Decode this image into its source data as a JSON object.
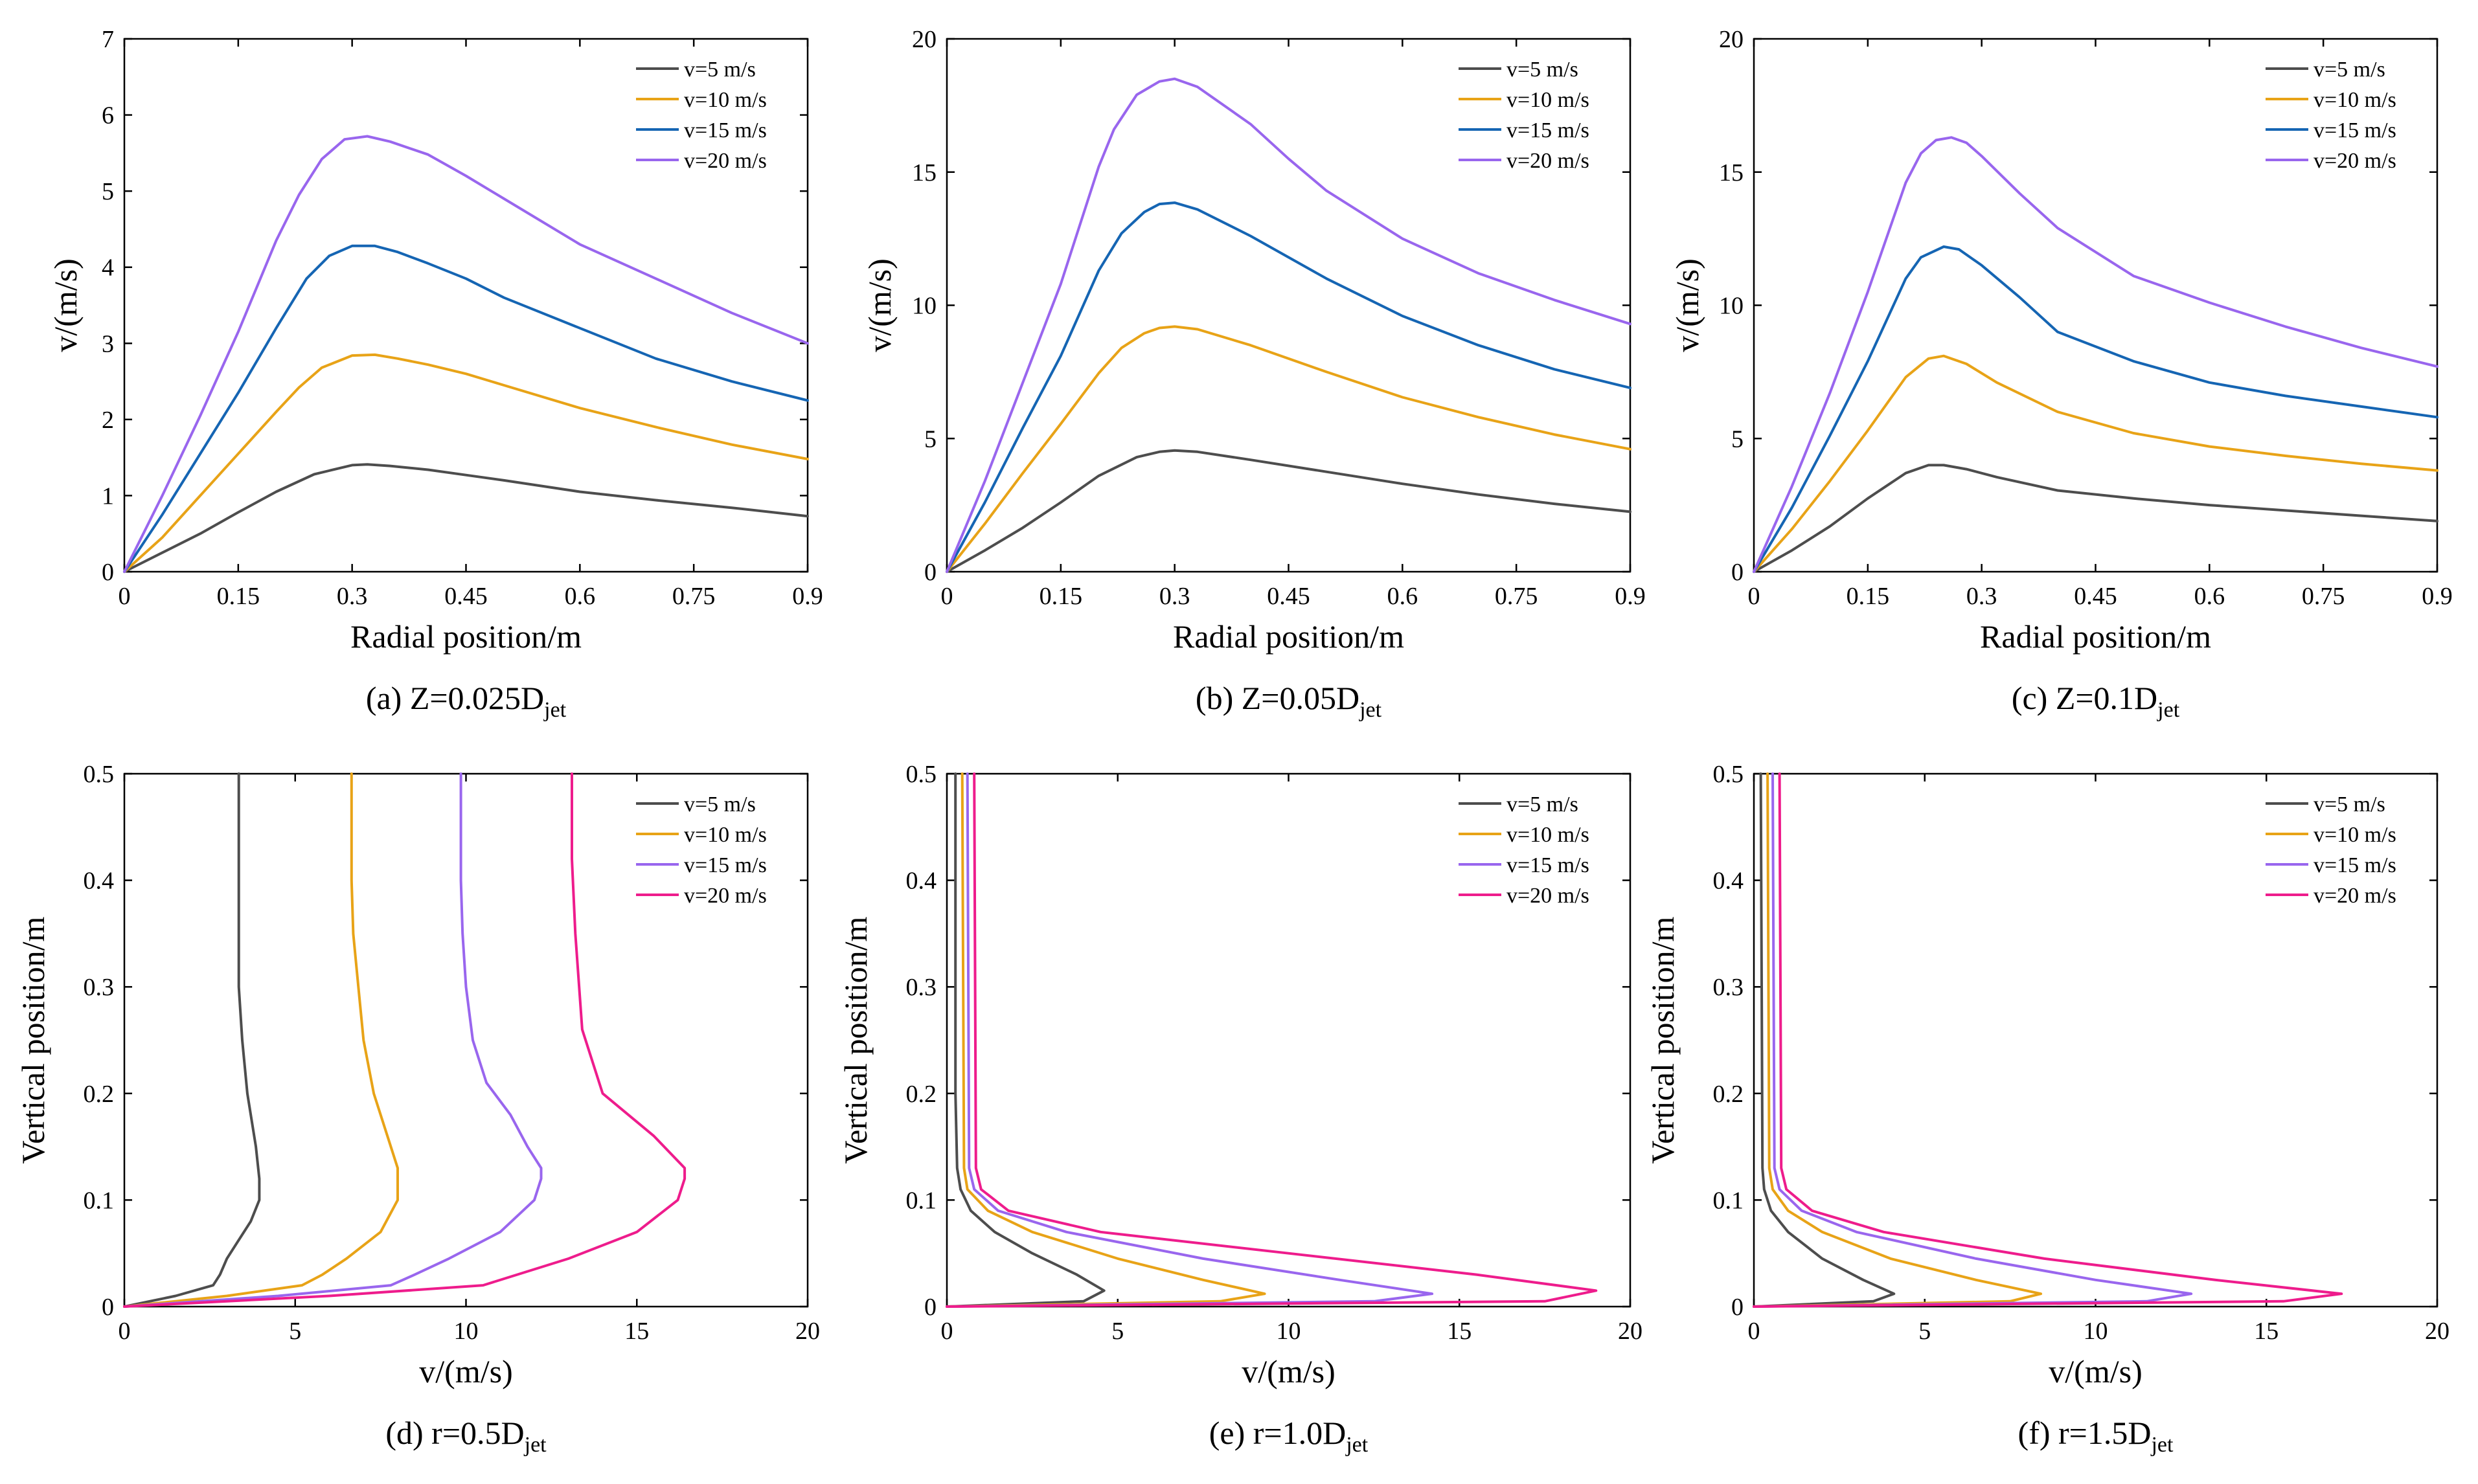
{
  "chart_data": [
    {
      "type": "line",
      "caption": {
        "prefix": "(a) Z=0.025D",
        "sub": "jet"
      },
      "xlabel": "Radial position/m",
      "ylabel": "v/(m/s)",
      "xlim": [
        0,
        0.9
      ],
      "ylim": [
        0,
        7
      ],
      "xticks": [
        0,
        0.15,
        0.3,
        0.45,
        0.6,
        0.75,
        0.9
      ],
      "xtick_labels": [
        "0",
        "0.15",
        "0.3",
        "0.45",
        "0.6",
        "0.75",
        "0.9"
      ],
      "yticks": [
        0,
        1,
        2,
        3,
        4,
        5,
        6,
        7
      ],
      "ytick_labels": [
        "0",
        "1",
        "2",
        "3",
        "4",
        "5",
        "6",
        "7"
      ],
      "legend_position": "top-right",
      "series": [
        {
          "name": "v=5 m/s",
          "color": "#4d4d4d",
          "x": [
            0,
            0.05,
            0.1,
            0.15,
            0.2,
            0.25,
            0.3,
            0.32,
            0.35,
            0.4,
            0.45,
            0.5,
            0.6,
            0.7,
            0.8,
            0.9
          ],
          "y": [
            0,
            0.25,
            0.5,
            0.78,
            1.05,
            1.28,
            1.4,
            1.41,
            1.39,
            1.34,
            1.27,
            1.2,
            1.05,
            0.94,
            0.84,
            0.73
          ]
        },
        {
          "name": "v=10 m/s",
          "color": "#e8a317",
          "x": [
            0,
            0.05,
            0.1,
            0.15,
            0.2,
            0.23,
            0.26,
            0.3,
            0.33,
            0.36,
            0.4,
            0.45,
            0.5,
            0.6,
            0.7,
            0.8,
            0.9
          ],
          "y": [
            0,
            0.45,
            1.0,
            1.55,
            2.1,
            2.42,
            2.68,
            2.84,
            2.85,
            2.8,
            2.72,
            2.6,
            2.45,
            2.15,
            1.9,
            1.67,
            1.48
          ]
        },
        {
          "name": "v=15 m/s",
          "color": "#1565b3",
          "x": [
            0,
            0.05,
            0.1,
            0.15,
            0.2,
            0.24,
            0.27,
            0.3,
            0.33,
            0.36,
            0.4,
            0.45,
            0.5,
            0.6,
            0.7,
            0.8,
            0.9
          ],
          "y": [
            0,
            0.75,
            1.55,
            2.35,
            3.2,
            3.85,
            4.15,
            4.28,
            4.28,
            4.2,
            4.05,
            3.85,
            3.6,
            3.2,
            2.8,
            2.5,
            2.25
          ]
        },
        {
          "name": "v=20 m/s",
          "color": "#9966ee",
          "x": [
            0,
            0.05,
            0.1,
            0.15,
            0.2,
            0.23,
            0.26,
            0.29,
            0.32,
            0.35,
            0.4,
            0.45,
            0.5,
            0.6,
            0.7,
            0.8,
            0.9
          ],
          "y": [
            0,
            1.0,
            2.05,
            3.15,
            4.35,
            4.95,
            5.42,
            5.68,
            5.72,
            5.65,
            5.48,
            5.2,
            4.9,
            4.3,
            3.85,
            3.4,
            3.0
          ]
        }
      ]
    },
    {
      "type": "line",
      "caption": {
        "prefix": "(b) Z=0.05D",
        "sub": "jet"
      },
      "xlabel": "Radial position/m",
      "ylabel": "v/(m/s)",
      "xlim": [
        0,
        0.9
      ],
      "ylim": [
        0,
        20
      ],
      "xticks": [
        0,
        0.15,
        0.3,
        0.45,
        0.6,
        0.75,
        0.9
      ],
      "xtick_labels": [
        "0",
        "0.15",
        "0.3",
        "0.45",
        "0.6",
        "0.75",
        "0.9"
      ],
      "yticks": [
        0,
        5,
        10,
        15,
        20
      ],
      "ytick_labels": [
        "0",
        "5",
        "10",
        "15",
        "20"
      ],
      "legend_position": "top-right",
      "series": [
        {
          "name": "v=5 m/s",
          "color": "#4d4d4d",
          "x": [
            0,
            0.05,
            0.1,
            0.15,
            0.2,
            0.25,
            0.28,
            0.3,
            0.33,
            0.4,
            0.5,
            0.6,
            0.7,
            0.8,
            0.9
          ],
          "y": [
            0,
            0.8,
            1.65,
            2.6,
            3.6,
            4.3,
            4.5,
            4.55,
            4.5,
            4.2,
            3.75,
            3.3,
            2.9,
            2.55,
            2.25
          ]
        },
        {
          "name": "v=10 m/s",
          "color": "#e8a317",
          "x": [
            0,
            0.05,
            0.1,
            0.15,
            0.2,
            0.23,
            0.26,
            0.28,
            0.3,
            0.33,
            0.4,
            0.5,
            0.6,
            0.7,
            0.8,
            0.9
          ],
          "y": [
            0,
            1.8,
            3.7,
            5.55,
            7.45,
            8.4,
            8.95,
            9.15,
            9.2,
            9.1,
            8.5,
            7.5,
            6.55,
            5.8,
            5.15,
            4.6
          ]
        },
        {
          "name": "v=15 m/s",
          "color": "#1565b3",
          "x": [
            0,
            0.05,
            0.1,
            0.15,
            0.2,
            0.23,
            0.26,
            0.28,
            0.3,
            0.33,
            0.4,
            0.5,
            0.6,
            0.7,
            0.8,
            0.9
          ],
          "y": [
            0,
            2.6,
            5.4,
            8.1,
            11.3,
            12.7,
            13.5,
            13.8,
            13.85,
            13.6,
            12.6,
            11.0,
            9.6,
            8.5,
            7.6,
            6.9
          ]
        },
        {
          "name": "v=20 m/s",
          "color": "#9966ee",
          "x": [
            0,
            0.05,
            0.1,
            0.15,
            0.2,
            0.22,
            0.25,
            0.28,
            0.3,
            0.33,
            0.4,
            0.45,
            0.5,
            0.6,
            0.7,
            0.8,
            0.9
          ],
          "y": [
            0,
            3.4,
            7.1,
            10.8,
            15.2,
            16.6,
            17.9,
            18.4,
            18.5,
            18.2,
            16.8,
            15.5,
            14.3,
            12.5,
            11.2,
            10.2,
            9.3
          ]
        }
      ]
    },
    {
      "type": "line",
      "caption": {
        "prefix": "(c) Z=0.1D",
        "sub": "jet"
      },
      "xlabel": "Radial position/m",
      "ylabel": "v/(m/s)",
      "xlim": [
        0,
        0.9
      ],
      "ylim": [
        0,
        20
      ],
      "xticks": [
        0,
        0.15,
        0.3,
        0.45,
        0.6,
        0.75,
        0.9
      ],
      "xtick_labels": [
        "0",
        "0.15",
        "0.3",
        "0.45",
        "0.6",
        "0.75",
        "0.9"
      ],
      "yticks": [
        0,
        5,
        10,
        15,
        20
      ],
      "ytick_labels": [
        "0",
        "5",
        "10",
        "15",
        "20"
      ],
      "legend_position": "top-right",
      "series": [
        {
          "name": "v=5 m/s",
          "color": "#4d4d4d",
          "x": [
            0,
            0.05,
            0.1,
            0.15,
            0.2,
            0.23,
            0.25,
            0.28,
            0.32,
            0.4,
            0.5,
            0.6,
            0.7,
            0.8,
            0.9
          ],
          "y": [
            0,
            0.8,
            1.7,
            2.75,
            3.7,
            4.0,
            4.0,
            3.85,
            3.55,
            3.05,
            2.75,
            2.5,
            2.3,
            2.1,
            1.9
          ]
        },
        {
          "name": "v=10 m/s",
          "color": "#e8a317",
          "x": [
            0,
            0.05,
            0.1,
            0.15,
            0.2,
            0.23,
            0.25,
            0.28,
            0.32,
            0.4,
            0.5,
            0.6,
            0.7,
            0.8,
            0.9
          ],
          "y": [
            0,
            1.6,
            3.4,
            5.3,
            7.3,
            8.0,
            8.1,
            7.8,
            7.1,
            6.0,
            5.2,
            4.7,
            4.35,
            4.05,
            3.8
          ]
        },
        {
          "name": "v=15 m/s",
          "color": "#1565b3",
          "x": [
            0,
            0.05,
            0.1,
            0.15,
            0.2,
            0.22,
            0.25,
            0.27,
            0.3,
            0.35,
            0.4,
            0.5,
            0.6,
            0.7,
            0.8,
            0.9
          ],
          "y": [
            0,
            2.4,
            5.1,
            7.9,
            11.0,
            11.8,
            12.2,
            12.1,
            11.5,
            10.3,
            9.0,
            7.9,
            7.1,
            6.6,
            6.2,
            5.8
          ]
        },
        {
          "name": "v=20 m/s",
          "color": "#9966ee",
          "x": [
            0,
            0.05,
            0.1,
            0.15,
            0.2,
            0.22,
            0.24,
            0.26,
            0.28,
            0.3,
            0.35,
            0.4,
            0.45,
            0.5,
            0.6,
            0.7,
            0.8,
            0.9
          ],
          "y": [
            0,
            3.2,
            6.7,
            10.5,
            14.6,
            15.7,
            16.2,
            16.3,
            16.1,
            15.6,
            14.2,
            12.9,
            12.0,
            11.1,
            10.1,
            9.2,
            8.4,
            7.7
          ]
        }
      ]
    },
    {
      "type": "line",
      "caption": {
        "prefix": "(d) r=0.5D",
        "sub": "jet"
      },
      "xlabel": "v/(m/s)",
      "ylabel": "Vertical position/m",
      "xlim": [
        0,
        20
      ],
      "ylim": [
        0,
        0.5
      ],
      "xticks": [
        0,
        5,
        10,
        15,
        20
      ],
      "xtick_labels": [
        "0",
        "5",
        "10",
        "15",
        "20"
      ],
      "yticks": [
        0,
        0.1,
        0.2,
        0.3,
        0.4,
        0.5
      ],
      "ytick_labels": [
        "0",
        "0.1",
        "0.2",
        "0.3",
        "0.4",
        "0.5"
      ],
      "legend_position": "top-right",
      "series": [
        {
          "name": "v=5 m/s",
          "color": "#4d4d4d",
          "x": [
            0,
            1.5,
            2.6,
            2.8,
            3.0,
            3.3,
            3.7,
            3.95,
            3.95,
            3.85,
            3.6,
            3.45,
            3.35,
            3.35,
            3.35
          ],
          "y": [
            0,
            0.01,
            0.02,
            0.03,
            0.045,
            0.06,
            0.08,
            0.1,
            0.12,
            0.15,
            0.2,
            0.25,
            0.3,
            0.4,
            0.5
          ]
        },
        {
          "name": "v=10 m/s",
          "color": "#e8a317",
          "x": [
            0,
            3.0,
            5.2,
            5.8,
            6.5,
            7.5,
            8.0,
            8.0,
            7.7,
            7.3,
            7.0,
            6.85,
            6.7,
            6.65,
            6.65
          ],
          "y": [
            0,
            0.01,
            0.02,
            0.03,
            0.045,
            0.07,
            0.1,
            0.13,
            0.16,
            0.2,
            0.25,
            0.3,
            0.35,
            0.4,
            0.5
          ]
        },
        {
          "name": "v=15 m/s",
          "color": "#9966ee",
          "x": [
            0,
            4.5,
            7.8,
            8.5,
            9.5,
            11.0,
            12.0,
            12.2,
            12.2,
            11.8,
            11.3,
            10.6,
            10.2,
            10.0,
            9.9,
            9.85,
            9.85
          ],
          "y": [
            0,
            0.01,
            0.02,
            0.03,
            0.045,
            0.07,
            0.1,
            0.12,
            0.13,
            0.15,
            0.18,
            0.21,
            0.25,
            0.3,
            0.35,
            0.4,
            0.5
          ]
        },
        {
          "name": "v=20 m/s",
          "color": "#ee1c8c",
          "x": [
            0,
            6.0,
            10.5,
            11.5,
            13.0,
            15.0,
            16.2,
            16.4,
            16.4,
            15.5,
            14.0,
            13.4,
            13.2,
            13.1,
            13.1
          ],
          "y": [
            0,
            0.01,
            0.02,
            0.03,
            0.045,
            0.07,
            0.1,
            0.12,
            0.13,
            0.16,
            0.2,
            0.26,
            0.35,
            0.42,
            0.5
          ]
        }
      ]
    },
    {
      "type": "line",
      "caption": {
        "prefix": "(e) r=1.0D",
        "sub": "jet"
      },
      "xlabel": "v/(m/s)",
      "ylabel": "Vertical position/m",
      "xlim": [
        0,
        20
      ],
      "ylim": [
        0,
        0.5
      ],
      "xticks": [
        0,
        5,
        10,
        15,
        20
      ],
      "xtick_labels": [
        "0",
        "5",
        "10",
        "15",
        "20"
      ],
      "yticks": [
        0,
        0.1,
        0.2,
        0.3,
        0.4,
        0.5
      ],
      "ytick_labels": [
        "0",
        "0.1",
        "0.2",
        "0.3",
        "0.4",
        "0.5"
      ],
      "legend_position": "top-right",
      "series": [
        {
          "name": "v=5 m/s",
          "color": "#4d4d4d",
          "x": [
            0,
            4.0,
            4.6,
            3.8,
            2.5,
            1.4,
            0.7,
            0.4,
            0.3,
            0.25,
            0.25
          ],
          "y": [
            0,
            0.005,
            0.015,
            0.03,
            0.05,
            0.07,
            0.09,
            0.11,
            0.13,
            0.2,
            0.5
          ]
        },
        {
          "name": "v=10 m/s",
          "color": "#e8a317",
          "x": [
            0,
            8.0,
            9.3,
            7.5,
            5.0,
            2.5,
            1.2,
            0.6,
            0.5,
            0.45
          ],
          "y": [
            0,
            0.005,
            0.012,
            0.025,
            0.045,
            0.07,
            0.09,
            0.11,
            0.13,
            0.5
          ]
        },
        {
          "name": "v=15 m/s",
          "color": "#9966ee",
          "x": [
            0,
            12.5,
            14.2,
            11.5,
            7.5,
            3.5,
            1.5,
            0.8,
            0.65,
            0.6
          ],
          "y": [
            0,
            0.005,
            0.012,
            0.025,
            0.045,
            0.07,
            0.09,
            0.11,
            0.13,
            0.5
          ]
        },
        {
          "name": "v=20 m/s",
          "color": "#ee1c8c",
          "x": [
            0,
            17.5,
            19.0,
            15.5,
            10.0,
            4.5,
            1.8,
            1.0,
            0.85,
            0.8
          ],
          "y": [
            0,
            0.005,
            0.015,
            0.03,
            0.05,
            0.07,
            0.09,
            0.11,
            0.13,
            0.5
          ]
        }
      ]
    },
    {
      "type": "line",
      "caption": {
        "prefix": "(f) r=1.5D",
        "sub": "jet"
      },
      "xlabel": "v/(m/s)",
      "ylabel": "Vertical position/m",
      "xlim": [
        0,
        20
      ],
      "ylim": [
        0,
        0.5
      ],
      "xticks": [
        0,
        5,
        10,
        15,
        20
      ],
      "xtick_labels": [
        "0",
        "5",
        "10",
        "15",
        "20"
      ],
      "yticks": [
        0,
        0.1,
        0.2,
        0.3,
        0.4,
        0.5
      ],
      "ytick_labels": [
        "0",
        "0.1",
        "0.2",
        "0.3",
        "0.4",
        "0.5"
      ],
      "legend_position": "top-right",
      "series": [
        {
          "name": "v=5 m/s",
          "color": "#4d4d4d",
          "x": [
            0,
            3.5,
            4.1,
            3.2,
            2.0,
            1.0,
            0.5,
            0.3,
            0.25,
            0.2
          ],
          "y": [
            0,
            0.005,
            0.012,
            0.025,
            0.045,
            0.07,
            0.09,
            0.11,
            0.13,
            0.5
          ]
        },
        {
          "name": "v=10 m/s",
          "color": "#e8a317",
          "x": [
            0,
            7.5,
            8.4,
            6.5,
            4.0,
            2.0,
            1.0,
            0.55,
            0.45,
            0.4
          ],
          "y": [
            0,
            0.005,
            0.012,
            0.025,
            0.045,
            0.07,
            0.09,
            0.11,
            0.13,
            0.5
          ]
        },
        {
          "name": "v=15 m/s",
          "color": "#9966ee",
          "x": [
            0,
            11.5,
            12.8,
            10.0,
            6.5,
            3.0,
            1.4,
            0.75,
            0.6,
            0.55
          ],
          "y": [
            0,
            0.005,
            0.012,
            0.025,
            0.045,
            0.07,
            0.09,
            0.11,
            0.13,
            0.5
          ]
        },
        {
          "name": "v=20 m/s",
          "color": "#ee1c8c",
          "x": [
            0,
            15.5,
            17.2,
            13.5,
            8.5,
            3.8,
            1.7,
            0.95,
            0.8,
            0.75
          ],
          "y": [
            0,
            0.005,
            0.012,
            0.025,
            0.045,
            0.07,
            0.09,
            0.11,
            0.13,
            0.5
          ]
        }
      ]
    }
  ]
}
